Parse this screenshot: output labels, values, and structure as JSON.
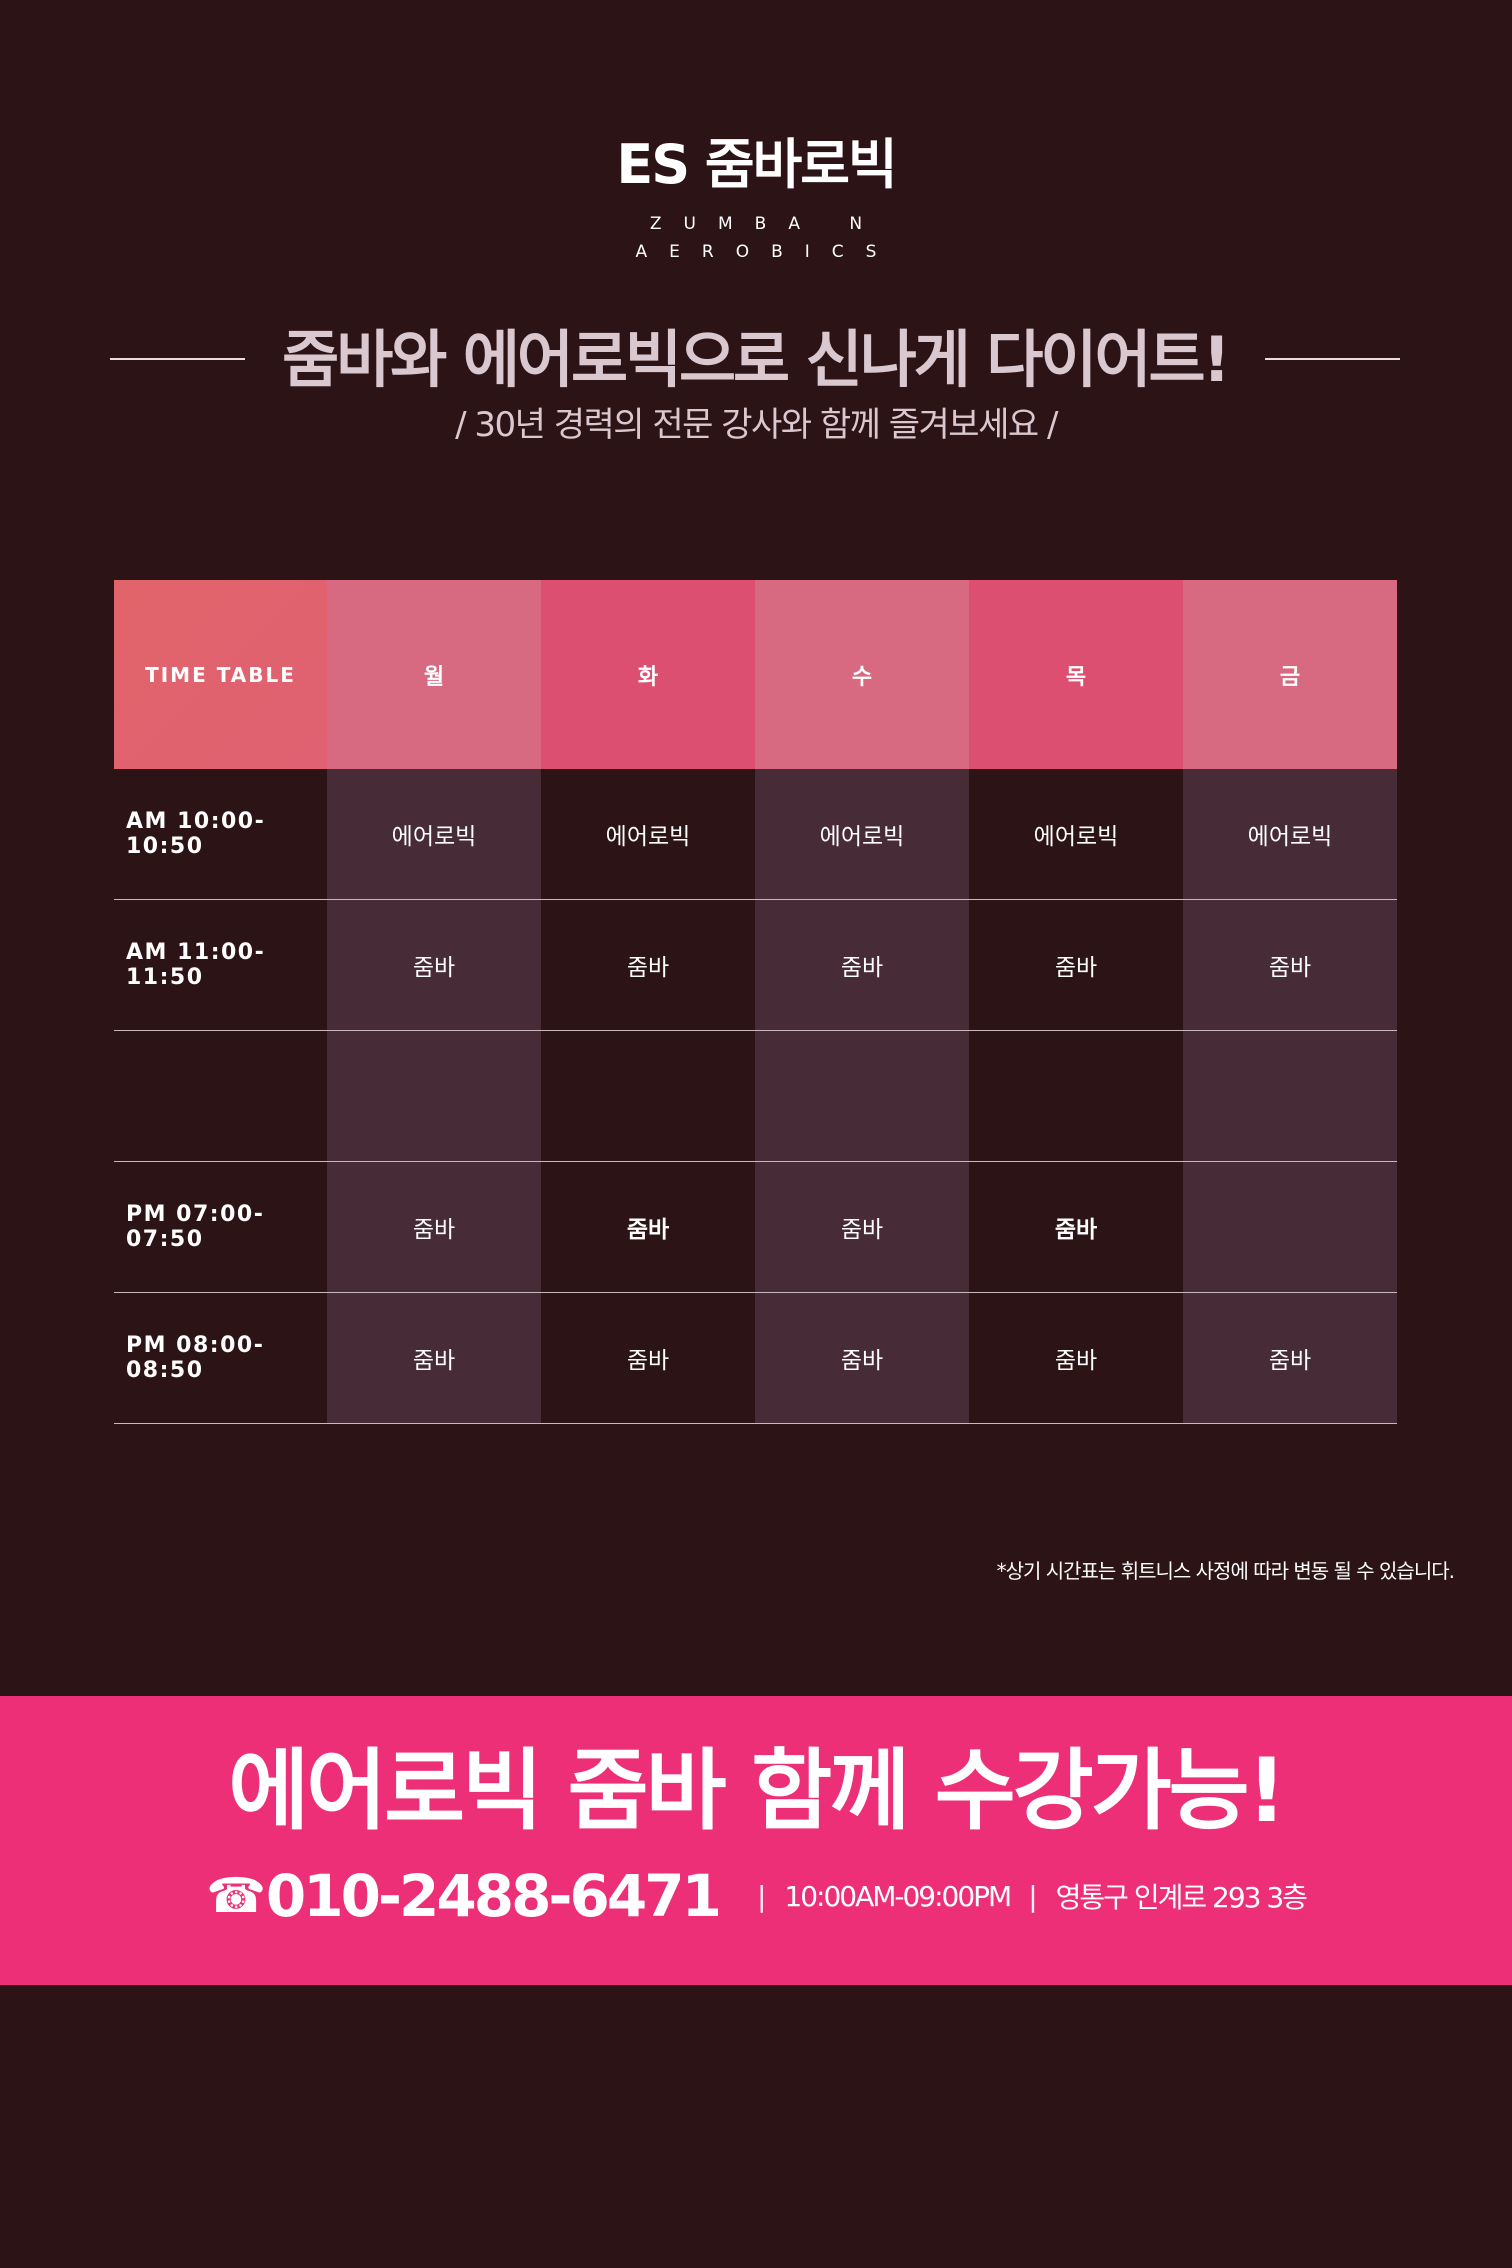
{
  "brand": {
    "name": "ES 줌바로빅",
    "subtitle_line1": "ZUMBA N",
    "subtitle_line2": "AEROBICS"
  },
  "headline": "줌바와 에어로빅으로 신나게 다이어트!",
  "subheadline": "/ 30년 경력의 전문 강사와 함께 즐겨보세요 /",
  "timetable": {
    "corner_label": "TIME TABLE",
    "days": [
      {
        "label": "월",
        "color": "#d76a80"
      },
      {
        "label": "화",
        "color": "#dd4f70"
      },
      {
        "label": "수",
        "color": "#d76a80"
      },
      {
        "label": "목",
        "color": "#dd4f70"
      },
      {
        "label": "금",
        "color": "#d76a80"
      }
    ],
    "column_bg_light": "#472b37",
    "column_bg_dark": "#2c1316",
    "rows": [
      {
        "time": "AM 10:00-10:50",
        "slots": [
          "에어로빅",
          "에어로빅",
          "에어로빅",
          "에어로빅",
          "에어로빅"
        ]
      },
      {
        "time": "AM 11:00-11:50",
        "slots": [
          "줌바",
          "줌바",
          "줌바",
          "줌바",
          "줌바"
        ]
      },
      {
        "time": "",
        "slots": [
          "",
          "",
          "",
          "",
          ""
        ]
      },
      {
        "time": "PM 07:00-07:50",
        "slots": [
          "줌바",
          "줌바",
          "줌바",
          "줌바",
          ""
        ]
      },
      {
        "time": "PM 08:00-08:50",
        "slots": [
          "줌바",
          "줌바",
          "줌바",
          "줌바",
          "줌바"
        ]
      }
    ]
  },
  "notice": "*상기 시간표는 휘트니스 사정에 따라 변동 될 수 있습니다.",
  "banner": {
    "title": "에어로빅 줌바 함께 수강가능!",
    "phone_icon": "☎",
    "phone": "010-2488-6471",
    "separator": "|",
    "hours": "10:00AM-09:00PM",
    "address": "영통구 인계로 293 3층",
    "background_color": "#ec2f77"
  }
}
